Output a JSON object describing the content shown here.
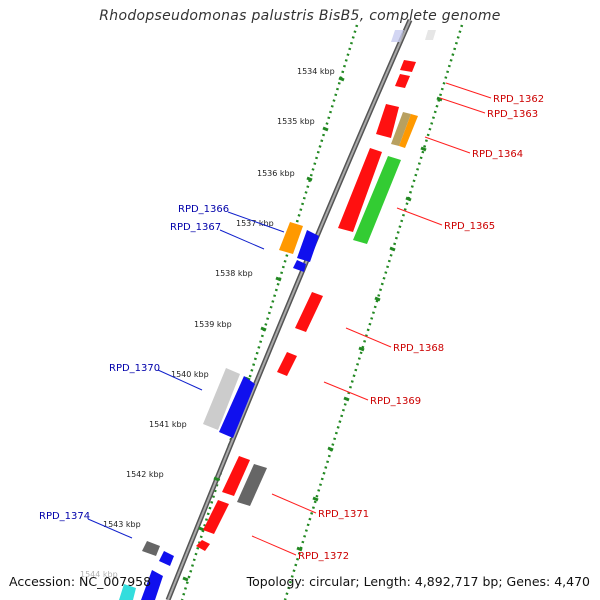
{
  "title": "Rhodopseudomonas palustris BisB5, complete genome",
  "footer": {
    "accession": "Accession: NC_007958",
    "topology": "Topology: circular; Length: 4,892,717 bp; Genes: 4,470"
  },
  "kbp_labels": [
    "1534 kbp",
    "1535 kbp",
    "1536 kbp",
    "1537 kbp",
    "1538 kbp",
    "1539 kbp",
    "1540 kbp",
    "1541 kbp",
    "1542 kbp",
    "1543 kbp",
    "1544 kbp"
  ],
  "genes_right": [
    "RPD_1362",
    "RPD_1363",
    "RPD_1364",
    "RPD_1365",
    "RPD_1368",
    "RPD_1369",
    "RPD_1371",
    "RPD_1372"
  ],
  "genes_left": [
    "RPD_1366",
    "RPD_1367",
    "RPD_1370",
    "RPD_1374"
  ],
  "colors": {
    "right_label": "#cc0000",
    "left_label": "#0000aa",
    "red": "#ff1010",
    "green": "#33cc33",
    "orange": "#ff9900",
    "blue": "#1010ee",
    "gray": "#666666",
    "light_gray": "#cccccc",
    "tan": "#b8a060",
    "cyan": "#33dddd",
    "backbone": "#777777",
    "tick_green": "#228822"
  }
}
